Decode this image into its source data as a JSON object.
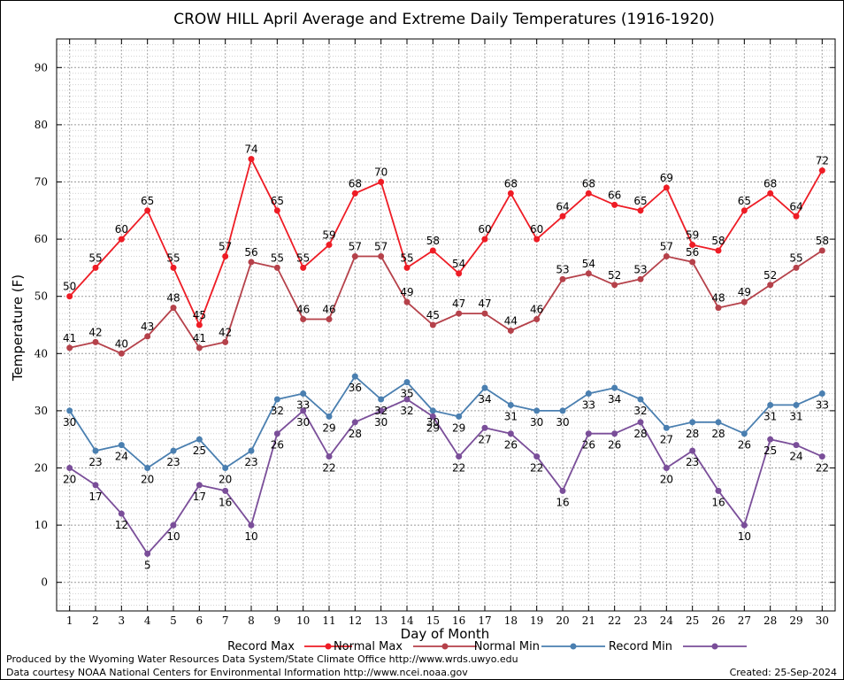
{
  "footer": {
    "produced_by": "Produced by the Wyoming Water Resources Data System/State Climate Office http://www.wrds.uwyo.edu",
    "courtesy": "Data courtesy NOAA National Centers for Environmental Information http://www.ncei.noaa.gov",
    "created": "Created:  25-Sep-2024"
  },
  "chart_data": {
    "type": "line",
    "title": "CROW HILL April Average and Extreme Daily Temperatures (1916-1920)",
    "xlabel": "Day of Month",
    "ylabel": "Temperature (F)",
    "x": [
      1,
      2,
      3,
      4,
      5,
      6,
      7,
      8,
      9,
      10,
      11,
      12,
      13,
      14,
      15,
      16,
      17,
      18,
      19,
      20,
      21,
      22,
      23,
      24,
      25,
      26,
      27,
      28,
      29,
      30
    ],
    "xlim": [
      0.5,
      30.5
    ],
    "ylim": [
      -5,
      95
    ],
    "yticks": [
      0,
      10,
      20,
      30,
      40,
      50,
      60,
      70,
      80,
      90
    ],
    "grid": true,
    "legend_position": "bottom",
    "series": [
      {
        "name": "Record Max",
        "color": "#ee1c25",
        "label_position": "above",
        "values": [
          50,
          55,
          60,
          65,
          55,
          45,
          57,
          74,
          65,
          55,
          59,
          68,
          70,
          55,
          58,
          54,
          60,
          68,
          60,
          64,
          68,
          66,
          65,
          69,
          59,
          58,
          65,
          68,
          64,
          72
        ]
      },
      {
        "name": "Normal Max",
        "color": "#b5414a",
        "label_position": "above",
        "values": [
          41,
          42,
          40,
          43,
          48,
          41,
          42,
          56,
          55,
          46,
          46,
          57,
          57,
          49,
          45,
          47,
          47,
          44,
          46,
          53,
          54,
          52,
          53,
          57,
          56,
          48,
          49,
          52,
          55,
          58
        ]
      },
      {
        "name": "Normal Min",
        "color": "#4a7fb0",
        "label_position": "below",
        "values": [
          30,
          23,
          24,
          20,
          23,
          25,
          20,
          23,
          32,
          33,
          29,
          36,
          32,
          35,
          30,
          29,
          34,
          31,
          30,
          30,
          33,
          34,
          32,
          27,
          28,
          28,
          26,
          31,
          31,
          33
        ]
      },
      {
        "name": "Record Min",
        "color": "#7a4e99",
        "label_position": "below",
        "values": [
          20,
          17,
          12,
          5,
          10,
          17,
          16,
          10,
          26,
          30,
          22,
          28,
          30,
          32,
          29,
          22,
          27,
          26,
          22,
          16,
          26,
          26,
          28,
          20,
          23,
          16,
          10,
          25,
          24,
          22
        ]
      }
    ]
  }
}
